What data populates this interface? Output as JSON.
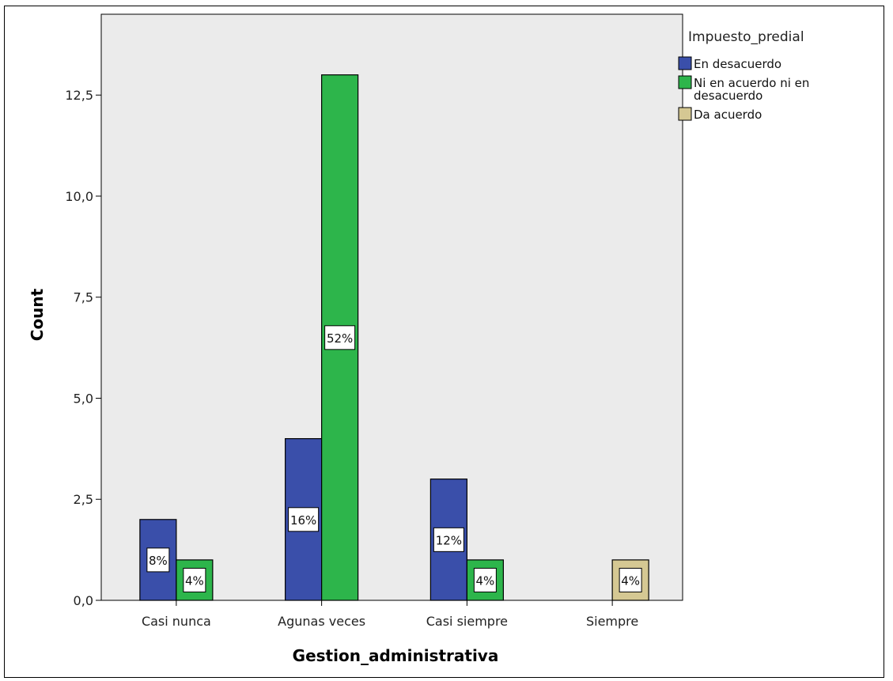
{
  "chart_data": {
    "type": "bar",
    "title": "",
    "xlabel": "Gestion_administrativa",
    "ylabel": "Count",
    "ylim": [
      0,
      14.5
    ],
    "yticks": [
      "0,0",
      "2,5",
      "5,0",
      "7,5",
      "10,0",
      "12,5"
    ],
    "ytick_values": [
      0,
      2.5,
      5,
      7.5,
      10,
      12.5
    ],
    "categories": [
      "Casi nunca",
      "Agunas veces",
      "Casi siempre",
      "Siempre"
    ],
    "legend_title": "Impuesto_predial",
    "legend_position": "top-right",
    "grid": false,
    "series": [
      {
        "name": "En desacuerdo",
        "color": "#3A4FAA",
        "values": [
          2,
          4,
          3,
          null
        ],
        "labels": [
          "8%",
          "16%",
          "12%",
          ""
        ]
      },
      {
        "name": "Ni en acuerdo ni en desacuerdo",
        "color": "#2DB54B",
        "values": [
          1,
          13,
          1,
          null
        ],
        "labels": [
          "4%",
          "52%",
          "4%",
          ""
        ]
      },
      {
        "name": "Da acuerdo",
        "color": "#D5C893",
        "values": [
          null,
          null,
          null,
          1
        ],
        "labels": [
          "",
          "",
          "",
          "4%"
        ]
      }
    ],
    "plot_background": "#EBEBEB"
  }
}
